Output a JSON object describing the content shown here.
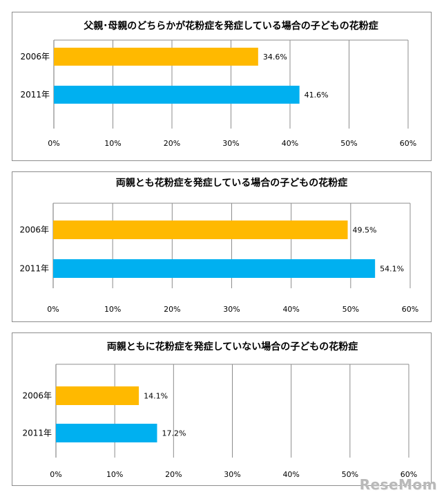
{
  "watermark": "ReseMom",
  "colors": {
    "series_2006": "#FFB900",
    "series_2011": "#00B0F0",
    "grid": "#8c8c8c",
    "frame": "#8c8c8c"
  },
  "chart_data": [
    {
      "type": "bar",
      "orientation": "horizontal",
      "title": "父親･母親のどちらかが花粉症を発症している場合の子どもの花粉症",
      "categories": [
        "2006年",
        "2011年"
      ],
      "values": [
        34.6,
        41.6
      ],
      "value_labels": [
        "34.6%",
        "41.6%"
      ],
      "xlim": [
        0,
        60
      ],
      "ticks": [
        "0%",
        "10%",
        "20%",
        "30%",
        "40%",
        "50%",
        "60%"
      ],
      "grid": true
    },
    {
      "type": "bar",
      "orientation": "horizontal",
      "title": "両親とも花粉症を発症している場合の子どもの花粉症",
      "categories": [
        "2006年",
        "2011年"
      ],
      "values": [
        49.5,
        54.1
      ],
      "value_labels": [
        "49.5%",
        "54.1%"
      ],
      "xlim": [
        0,
        60
      ],
      "ticks": [
        "0%",
        "10%",
        "20%",
        "30%",
        "40%",
        "50%",
        "60%"
      ],
      "grid": true
    },
    {
      "type": "bar",
      "orientation": "horizontal",
      "title": "両親ともに花粉症を発症していない場合の子どもの花粉症",
      "categories": [
        "2006年",
        "2011年"
      ],
      "values": [
        14.1,
        17.2
      ],
      "value_labels": [
        "14.1%",
        "17.2%"
      ],
      "xlim": [
        0,
        60
      ],
      "ticks": [
        "0%",
        "10%",
        "20%",
        "30%",
        "40%",
        "50%",
        "60%"
      ],
      "grid": true
    }
  ]
}
